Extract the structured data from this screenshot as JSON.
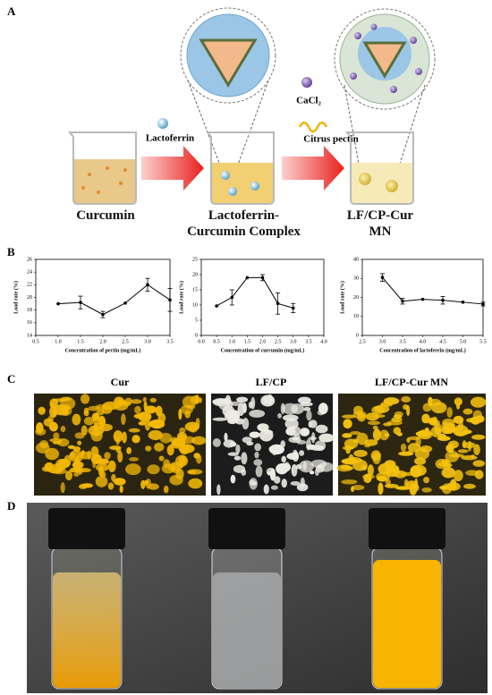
{
  "panel_a": {
    "label": "A",
    "reagents": [
      "Lactoferrin",
      "CaCl₂",
      "Citrus pectin"
    ],
    "steps": [
      "Curcumin",
      "Lactoferrin-Curcumin Complex",
      "LF/CP-Cur MN"
    ]
  },
  "panel_b": {
    "label": "B"
  },
  "chart_data": [
    {
      "type": "line",
      "xlabel": "Concentration of pectin (mg/mL)",
      "ylabel": "Load rate (%)",
      "x": [
        1.0,
        1.5,
        2.0,
        2.5,
        3.0,
        3.5
      ],
      "values": [
        19.0,
        19.2,
        17.3,
        19.1,
        22.0,
        19.6
      ],
      "errors": [
        null,
        1.0,
        0.5,
        null,
        1.0,
        1.8
      ],
      "xlim": [
        0.5,
        3.5
      ],
      "ylim": [
        14,
        26
      ],
      "xticks": [
        0.5,
        {
          "value": 1,
          "label": "1.0"
        },
        1.5,
        {
          "value": 2,
          "label": "2.0"
        },
        2.5,
        {
          "value": 3,
          "label": "3.0"
        },
        3.5
      ],
      "yticks": [
        14,
        16,
        18,
        20,
        22,
        24,
        26
      ],
      "color": "#000000"
    },
    {
      "type": "line",
      "xlabel": "Concentration of curcumin (mg/mL)",
      "ylabel": "Load rate (%)",
      "x": [
        0.5,
        1.0,
        1.5,
        2.0,
        2.5,
        3.0
      ],
      "values": [
        9.7,
        12.5,
        19.0,
        19.0,
        10.5,
        9.0
      ],
      "errors": [
        null,
        2.5,
        null,
        1.0,
        3.5,
        1.5
      ],
      "xlim": [
        0,
        4
      ],
      "ylim": [
        0,
        25
      ],
      "xticks": [
        {
          "value": 0,
          "label": "0.0"
        },
        0.5,
        {
          "value": 1,
          "label": "1.0"
        },
        1.5,
        {
          "value": 2,
          "label": "2.0"
        },
        2.5,
        {
          "value": 3,
          "label": "3.0"
        },
        3.5,
        {
          "value": 4,
          "label": "4.0"
        }
      ],
      "yticks": [
        0,
        5,
        10,
        15,
        20,
        25
      ],
      "color": "#000000"
    },
    {
      "type": "line",
      "xlabel": "Concentration of lactoferrin (mg/mL)",
      "ylabel": "Load rate (%)",
      "x": [
        3.0,
        3.5,
        4.0,
        4.5,
        5.0,
        5.5
      ],
      "values": [
        30.5,
        18.0,
        19.0,
        18.5,
        17.5,
        16.5
      ],
      "errors": [
        2.0,
        1.5,
        null,
        2.0,
        null,
        1.0
      ],
      "xlim": [
        2.5,
        5.5
      ],
      "ylim": [
        0,
        40
      ],
      "xticks": [
        2.5,
        {
          "value": 3,
          "label": "3.0"
        },
        3.5,
        {
          "value": 4,
          "label": "4.0"
        },
        4.5,
        {
          "value": 5,
          "label": "5.0"
        },
        5.5
      ],
      "yticks": [
        0,
        10,
        20,
        30,
        40
      ],
      "color": "#000000"
    }
  ],
  "panel_c": {
    "label": "C",
    "captions": [
      "Cur",
      "LF/CP",
      "LF/CP-Cur MN"
    ]
  },
  "panel_d": {
    "label": "D"
  }
}
